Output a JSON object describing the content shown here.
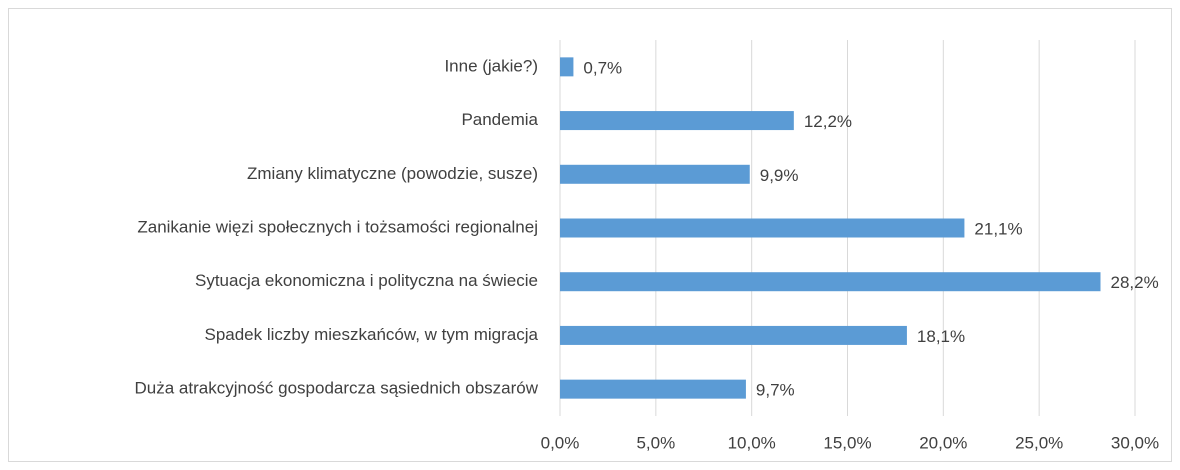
{
  "chart_data": {
    "type": "barh",
    "categories": [
      "Inne (jakie?)",
      "Pandemia",
      "Zmiany klimatyczne (powodzie, susze)",
      "Zanikanie więzi społecznych i tożsamości regionalnej",
      "Sytuacja ekonomiczna i polityczna na świecie",
      "Spadek liczby mieszkańców, w tym migracja",
      "Duża atrakcyjność gospodarcza sąsiednich obszarów"
    ],
    "values": [
      0.7,
      12.2,
      9.9,
      21.1,
      28.2,
      18.1,
      9.7
    ],
    "value_labels": [
      "0,7%",
      "12,2%",
      "9,9%",
      "21,1%",
      "28,2%",
      "18,1%",
      "9,7%"
    ],
    "color": "#5b9bd5",
    "xlim": [
      0,
      30
    ],
    "xticks": [
      {
        "value": 0,
        "label": "0,0%"
      },
      {
        "value": 5,
        "label": "5,0%"
      },
      {
        "value": 10,
        "label": "10,0%"
      },
      {
        "value": 15,
        "label": "15,0%"
      },
      {
        "value": 20,
        "label": "20,0%"
      },
      {
        "value": 25,
        "label": "25,0%"
      },
      {
        "value": 30,
        "label": "30,0%"
      }
    ],
    "grid": true
  }
}
